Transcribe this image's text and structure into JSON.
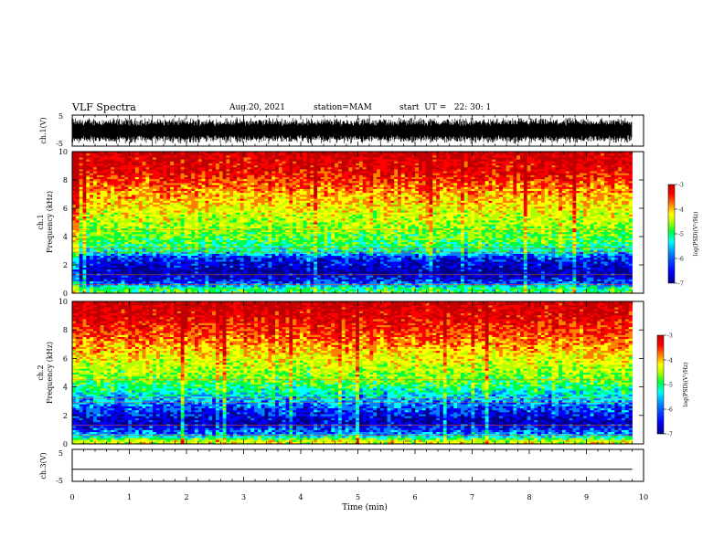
{
  "header": {
    "title": "VLF Spectra",
    "date": "Aug.20, 2021",
    "station": "station=MAM",
    "start": "start  UT =   22: 30: 1"
  },
  "chart_data": [
    {
      "type": "line",
      "panel": "waveform-ch1",
      "ylabel": "ch.1(V)",
      "ylim": [
        -5,
        5
      ],
      "yticks": [
        "5",
        "-5"
      ],
      "description_values": "dense oscillating waveform filling roughly -5 to 5 V over 0-9.8 min"
    },
    {
      "type": "heatmap",
      "panel": "spectrogram-ch1",
      "ylabel": "ch.1 Frequency (kHz)",
      "ylim": [
        0,
        10
      ],
      "yticks": [
        "0",
        "2",
        "4",
        "6",
        "8",
        "10"
      ],
      "colorbar": {
        "label": "log(PSD)(V²/Hz)",
        "ticks": [
          "-3",
          "-4",
          "-5",
          "-6",
          "-7"
        ],
        "range": [
          -7,
          -3
        ]
      },
      "profile": [
        {
          "f": 0.3,
          "v": -5.2
        },
        {
          "f": 0.7,
          "v": -6.2
        },
        {
          "f": 1.5,
          "v": -6.8
        },
        {
          "f": 2.5,
          "v": -6.3
        },
        {
          "f": 3.0,
          "v": -5.4
        },
        {
          "f": 4.0,
          "v": -5.0
        },
        {
          "f": 5.5,
          "v": -4.6
        },
        {
          "f": 7.0,
          "v": -4.1
        },
        {
          "f": 8.5,
          "v": -3.5
        },
        {
          "f": 10.0,
          "v": -3.2
        }
      ]
    },
    {
      "type": "heatmap",
      "panel": "spectrogram-ch2",
      "ylabel": "ch.2 Frequency (kHz)",
      "ylim": [
        0,
        10
      ],
      "yticks": [
        "0",
        "2",
        "4",
        "6",
        "8",
        "10"
      ],
      "colorbar": {
        "label": "log(PSD)(V²/Hz)",
        "ticks": [
          "-3",
          "-4",
          "-5",
          "-6",
          "-7"
        ],
        "range": [
          -7,
          -3
        ]
      },
      "profile": [
        {
          "f": 0.2,
          "v": -4.6
        },
        {
          "f": 0.6,
          "v": -5.9
        },
        {
          "f": 1.5,
          "v": -6.7
        },
        {
          "f": 2.5,
          "v": -6.2
        },
        {
          "f": 3.5,
          "v": -5.6
        },
        {
          "f": 4.5,
          "v": -5.0
        },
        {
          "f": 6.0,
          "v": -4.5
        },
        {
          "f": 7.5,
          "v": -3.9
        },
        {
          "f": 9.0,
          "v": -3.4
        },
        {
          "f": 10.0,
          "v": -3.2
        }
      ]
    },
    {
      "type": "line",
      "panel": "waveform-ch3",
      "ylabel": "ch.3(V)",
      "ylim": [
        -5,
        5
      ],
      "yticks": [
        "5",
        "-5"
      ],
      "x": [
        0,
        9.8
      ],
      "y": [
        -1.2,
        -1.2
      ]
    }
  ],
  "xaxis": {
    "xlabel": "Time (min)",
    "xlim": [
      0,
      10
    ],
    "ticks": [
      "0",
      "1",
      "2",
      "3",
      "4",
      "5",
      "6",
      "7",
      "8",
      "9",
      "10"
    ]
  },
  "data_end_min": 9.8,
  "colormap": [
    "#00008b",
    "#0000ff",
    "#0080ff",
    "#00ffff",
    "#00ff40",
    "#b0ff00",
    "#ffff00",
    "#ff8000",
    "#ff0000",
    "#c00000"
  ]
}
